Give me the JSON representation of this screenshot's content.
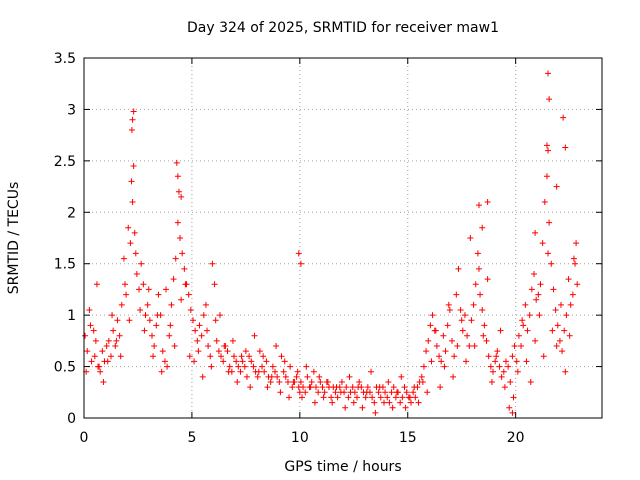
{
  "chart_data": {
    "type": "scatter",
    "title": "Day 324 of 2025, SRMTID for receiver maw1",
    "xlabel": "GPS time / hours",
    "ylabel": "SRMTID / TECUs",
    "xlim": [
      0,
      24
    ],
    "ylim": [
      0,
      3.5
    ],
    "xticks": [
      0,
      5,
      10,
      15,
      20
    ],
    "xtick_labels": [
      "0",
      "5",
      "10",
      "15",
      "20"
    ],
    "yticks": [
      0,
      0.5,
      1,
      1.5,
      2,
      2.5,
      3,
      3.5
    ],
    "ytick_labels": [
      "0",
      "0.5",
      "1",
      "1.5",
      "2",
      "2.5",
      "3",
      "3.5"
    ],
    "grid": true,
    "marker": "+",
    "marker_color": "#ff0000",
    "series": [
      {
        "name": "SRMTID",
        "x": [
          0.05,
          0.15,
          0.25,
          0.35,
          0.45,
          0.55,
          0.65,
          0.75,
          0.85,
          0.95,
          1.05,
          1.15,
          1.25,
          1.35,
          1.45,
          1.55,
          1.65,
          1.75,
          1.85,
          1.95,
          2.05,
          2.15,
          2.2,
          2.25,
          2.3,
          2.35,
          2.45,
          2.55,
          2.65,
          2.75,
          2.85,
          2.95,
          3.05,
          3.15,
          3.25,
          3.35,
          3.45,
          3.55,
          3.65,
          3.75,
          3.85,
          3.95,
          4.05,
          4.15,
          4.25,
          4.35,
          4.4,
          4.45,
          4.55,
          4.65,
          4.75,
          4.85,
          4.95,
          5.05,
          5.15,
          5.25,
          5.35,
          5.45,
          5.55,
          5.65,
          5.75,
          5.85,
          5.95,
          6.05,
          6.15,
          6.25,
          6.35,
          6.45,
          6.55,
          6.65,
          6.75,
          6.85,
          6.95,
          7.05,
          7.15,
          7.25,
          7.35,
          7.45,
          7.55,
          7.65,
          7.75,
          7.85,
          7.95,
          8.05,
          8.15,
          8.25,
          8.35,
          8.45,
          8.55,
          8.65,
          8.75,
          8.85,
          8.95,
          9.05,
          9.15,
          9.25,
          9.35,
          9.45,
          9.55,
          9.65,
          9.75,
          9.85,
          9.95,
          10.0,
          10.05,
          10.15,
          10.25,
          10.35,
          10.45,
          10.55,
          10.65,
          10.75,
          10.85,
          10.95,
          11.05,
          11.15,
          11.25,
          11.35,
          11.45,
          11.55,
          11.65,
          11.75,
          11.85,
          11.95,
          12.05,
          12.15,
          12.25,
          12.35,
          12.45,
          12.55,
          12.65,
          12.75,
          12.85,
          12.95,
          13.05,
          13.15,
          13.25,
          13.35,
          13.45,
          13.55,
          13.65,
          13.75,
          13.85,
          13.95,
          14.05,
          14.15,
          14.25,
          14.35,
          14.45,
          14.55,
          14.65,
          14.75,
          14.85,
          14.95,
          15.05,
          15.15,
          15.25,
          15.35,
          15.45,
          15.55,
          15.65,
          15.75,
          15.85,
          15.95,
          16.05,
          16.15,
          16.25,
          16.35,
          16.45,
          16.55,
          16.65,
          16.75,
          16.85,
          16.95,
          17.05,
          17.15,
          17.25,
          17.35,
          17.45,
          17.55,
          17.65,
          17.75,
          17.85,
          17.95,
          18.05,
          18.15,
          18.25,
          18.35,
          18.45,
          18.55,
          18.65,
          18.75,
          18.85,
          18.95,
          19.05,
          19.15,
          19.25,
          19.35,
          19.45,
          19.55,
          19.65,
          19.75,
          19.85,
          19.95,
          20.05,
          20.15,
          20.25,
          20.35,
          20.45,
          20.55,
          20.65,
          20.75,
          20.85,
          20.95,
          21.05,
          21.15,
          21.25,
          21.35,
          21.45,
          21.5,
          21.55,
          21.65,
          21.75,
          21.85,
          21.95,
          22.05,
          22.15,
          22.25,
          22.35,
          22.45,
          22.55,
          22.65,
          22.75,
          22.85,
          0.1,
          0.3,
          0.5,
          0.7,
          0.9,
          1.1,
          1.3,
          1.5,
          1.7,
          1.9,
          2.1,
          2.4,
          2.6,
          2.8,
          3.0,
          3.2,
          3.4,
          3.6,
          3.8,
          4.0,
          4.2,
          4.5,
          4.7,
          4.9,
          5.1,
          5.3,
          5.5,
          5.7,
          5.9,
          6.1,
          6.3,
          6.5,
          6.7,
          6.9,
          7.1,
          7.3,
          7.5,
          7.7,
          7.9,
          8.1,
          8.3,
          8.5,
          8.7,
          8.9,
          9.1,
          9.3,
          9.5,
          9.7,
          9.9,
          10.1,
          10.3,
          10.5,
          10.7,
          10.9,
          11.1,
          11.3,
          11.5,
          11.7,
          11.9,
          12.1,
          12.3,
          12.5,
          12.7,
          12.9,
          13.1,
          13.3,
          13.5,
          13.7,
          13.9,
          14.1,
          14.3,
          14.5,
          14.7,
          14.9,
          15.1,
          15.3,
          15.5,
          15.7,
          15.9,
          16.1,
          16.3,
          16.5,
          16.7,
          16.9,
          17.1,
          17.3,
          17.5,
          17.7,
          17.9,
          18.1,
          18.3,
          18.5,
          18.7,
          18.9,
          19.1,
          19.3,
          19.5,
          19.7,
          19.9,
          20.1,
          20.3,
          20.5,
          20.7,
          20.9,
          21.1,
          21.3,
          21.5,
          21.7,
          21.9,
          22.1,
          22.3,
          22.5,
          22.7,
          22.8,
          2.22,
          2.25,
          2.3,
          4.3,
          4.35,
          4.5,
          9.95,
          10.05,
          18.3,
          18.45,
          18.7,
          21.45,
          21.5,
          21.55,
          22.2,
          21.9,
          22.3,
          20.9,
          19.85,
          0.6
        ],
        "y": [
          0.8,
          0.65,
          1.05,
          0.55,
          0.85,
          0.75,
          0.5,
          0.45,
          0.65,
          0.55,
          0.7,
          0.75,
          0.6,
          0.85,
          0.7,
          0.95,
          0.8,
          1.1,
          1.55,
          1.2,
          1.85,
          1.7,
          2.3,
          2.1,
          2.45,
          1.8,
          1.4,
          1.25,
          1.5,
          1.3,
          1.0,
          1.1,
          0.95,
          0.8,
          0.7,
          0.9,
          1.2,
          1.0,
          0.65,
          0.55,
          0.5,
          0.8,
          1.1,
          1.35,
          1.55,
          1.9,
          2.2,
          1.75,
          1.6,
          1.45,
          1.3,
          1.2,
          1.05,
          0.95,
          0.85,
          0.75,
          0.9,
          0.8,
          1.0,
          1.1,
          0.7,
          0.6,
          1.5,
          1.3,
          0.75,
          0.65,
          0.6,
          0.55,
          0.7,
          0.65,
          0.5,
          0.45,
          0.6,
          0.55,
          0.5,
          0.45,
          0.55,
          0.5,
          0.4,
          0.6,
          0.55,
          0.5,
          0.45,
          0.4,
          0.65,
          0.5,
          0.45,
          0.55,
          0.4,
          0.35,
          0.5,
          0.45,
          0.4,
          0.35,
          0.6,
          0.45,
          0.4,
          0.35,
          0.5,
          0.3,
          0.35,
          0.4,
          0.3,
          0.25,
          0.35,
          0.3,
          0.25,
          0.4,
          0.3,
          0.35,
          0.45,
          0.3,
          0.25,
          0.35,
          0.3,
          0.25,
          0.35,
          0.3,
          0.2,
          0.3,
          0.25,
          0.2,
          0.3,
          0.35,
          0.25,
          0.3,
          0.2,
          0.25,
          0.3,
          0.25,
          0.2,
          0.35,
          0.3,
          0.25,
          0.2,
          0.3,
          0.25,
          0.2,
          0.15,
          0.3,
          0.25,
          0.2,
          0.3,
          0.25,
          0.2,
          0.15,
          0.25,
          0.3,
          0.2,
          0.25,
          0.15,
          0.2,
          0.3,
          0.25,
          0.2,
          0.15,
          0.25,
          0.2,
          0.3,
          0.35,
          0.4,
          0.5,
          0.65,
          0.75,
          0.9,
          1.0,
          0.85,
          0.7,
          0.6,
          0.55,
          0.8,
          0.65,
          0.9,
          1.05,
          0.75,
          0.6,
          1.2,
          1.45,
          1.05,
          0.85,
          1.0,
          0.8,
          0.7,
          0.95,
          1.1,
          1.3,
          1.6,
          1.2,
          1.05,
          0.9,
          0.75,
          0.6,
          0.5,
          0.45,
          0.55,
          0.65,
          0.5,
          0.4,
          0.45,
          0.55,
          0.5,
          0.35,
          0.6,
          0.7,
          0.55,
          0.8,
          0.7,
          0.9,
          1.1,
          0.85,
          1.0,
          1.25,
          1.4,
          1.15,
          1.2,
          1.3,
          1.7,
          2.1,
          2.35,
          2.6,
          1.9,
          1.5,
          1.25,
          1.05,
          0.9,
          0.75,
          0.65,
          0.85,
          1.0,
          1.35,
          1.1,
          1.2,
          1.5,
          1.3,
          0.45,
          0.9,
          0.6,
          0.5,
          0.35,
          0.55,
          1.0,
          0.75,
          0.6,
          1.3,
          0.95,
          1.6,
          1.05,
          0.85,
          1.25,
          0.6,
          1.0,
          0.45,
          1.25,
          0.9,
          0.7,
          1.15,
          1.3,
          0.6,
          0.55,
          0.65,
          0.4,
          0.85,
          0.5,
          0.95,
          1.0,
          0.7,
          0.45,
          0.75,
          0.35,
          0.6,
          0.65,
          0.3,
          0.8,
          0.45,
          0.6,
          0.3,
          0.4,
          0.7,
          0.25,
          0.55,
          0.2,
          0.35,
          0.45,
          0.2,
          0.5,
          0.3,
          0.15,
          0.4,
          0.2,
          0.35,
          0.15,
          0.3,
          0.25,
          0.1,
          0.4,
          0.15,
          0.3,
          0.1,
          0.25,
          0.45,
          0.05,
          0.3,
          0.15,
          0.35,
          0.1,
          0.25,
          0.4,
          0.1,
          0.2,
          0.3,
          0.15,
          0.35,
          0.25,
          0.55,
          0.85,
          0.3,
          0.5,
          1.1,
          0.4,
          0.7,
          0.95,
          0.55,
          1.75,
          0.7,
          1.45,
          0.8,
          1.35,
          0.35,
          0.6,
          0.85,
          0.3,
          0.1,
          0.2,
          0.45,
          0.95,
          0.55,
          0.35,
          0.75,
          1.0,
          0.6,
          1.6,
          0.85,
          0.7,
          1.1,
          0.45,
          0.8,
          1.55,
          1.7,
          2.8,
          2.9,
          2.98,
          2.48,
          2.35,
          2.15,
          1.6,
          1.5,
          2.07,
          1.85,
          2.1,
          2.65,
          3.35,
          3.1,
          2.92,
          2.25,
          2.63,
          1.8,
          0.05,
          1.3
        ]
      }
    ]
  }
}
